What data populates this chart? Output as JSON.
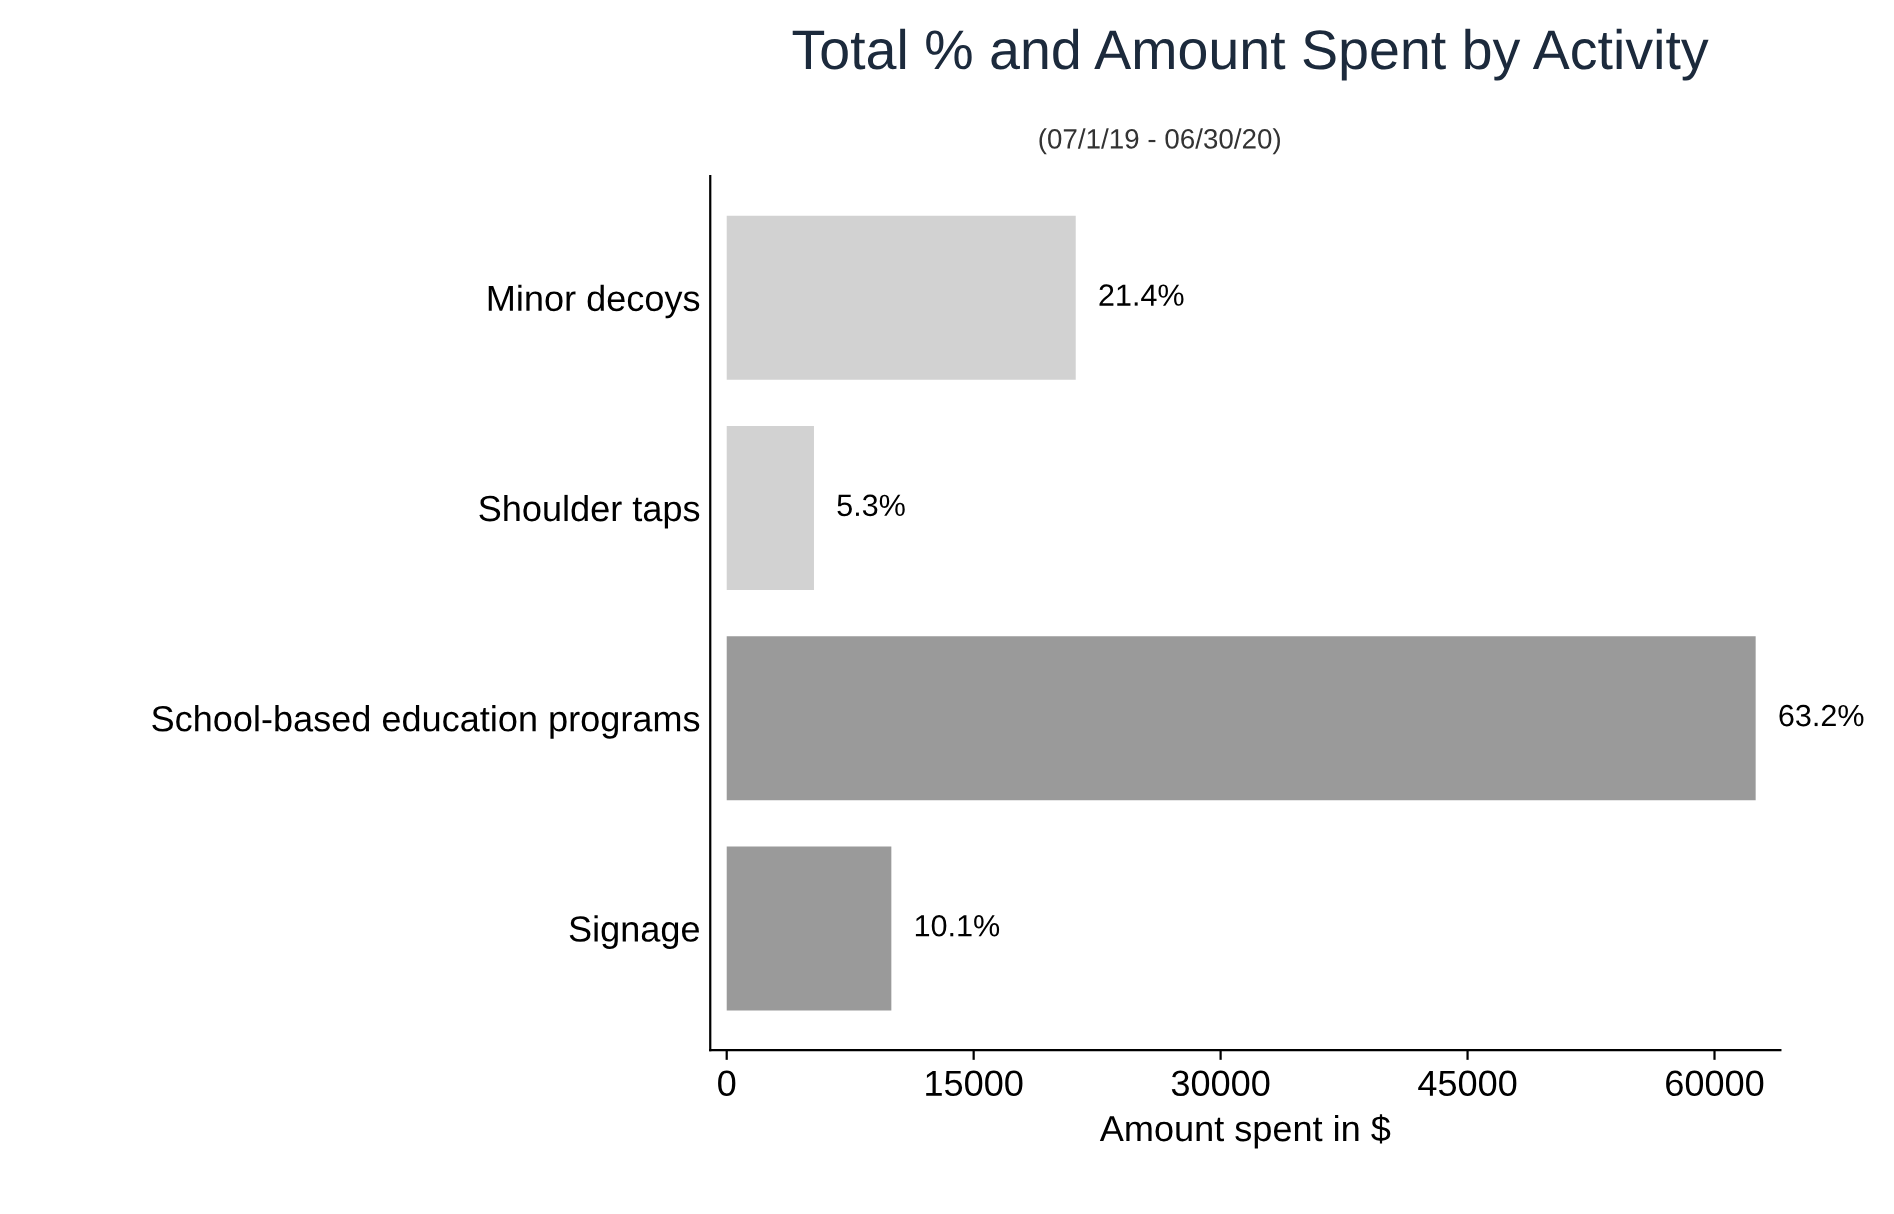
{
  "chart_data": {
    "type": "bar",
    "orientation": "horizontal",
    "title": "Total % and Amount Spent by Activity",
    "subtitle": "(07/1/19 - 06/30/20)",
    "xlabel": "Amount spent in $",
    "categories": [
      "Minor decoys",
      "Shoulder taps",
      "School-based education programs",
      "Signage"
    ],
    "values": [
      21200,
      5300,
      62500,
      10000
    ],
    "colors": [
      "#d2d2d2",
      "#d2d2d2",
      "#9a9a9a",
      "#9a9a9a"
    ],
    "annotations": [
      {
        "text": "21.4%",
        "x": 21200,
        "y": "Minor decoys"
      },
      {
        "text": "5.3%",
        "x": 5300,
        "y": "Shoulder taps"
      },
      {
        "text": "63.2%",
        "x": 62500,
        "y": "School-based education programs"
      },
      {
        "text": "10.1%",
        "x": 10000,
        "y": "Signage"
      }
    ],
    "xlim": [
      -1000,
      64000
    ],
    "xticks": [
      0,
      15000,
      30000,
      45000,
      60000
    ],
    "grid": false
  }
}
